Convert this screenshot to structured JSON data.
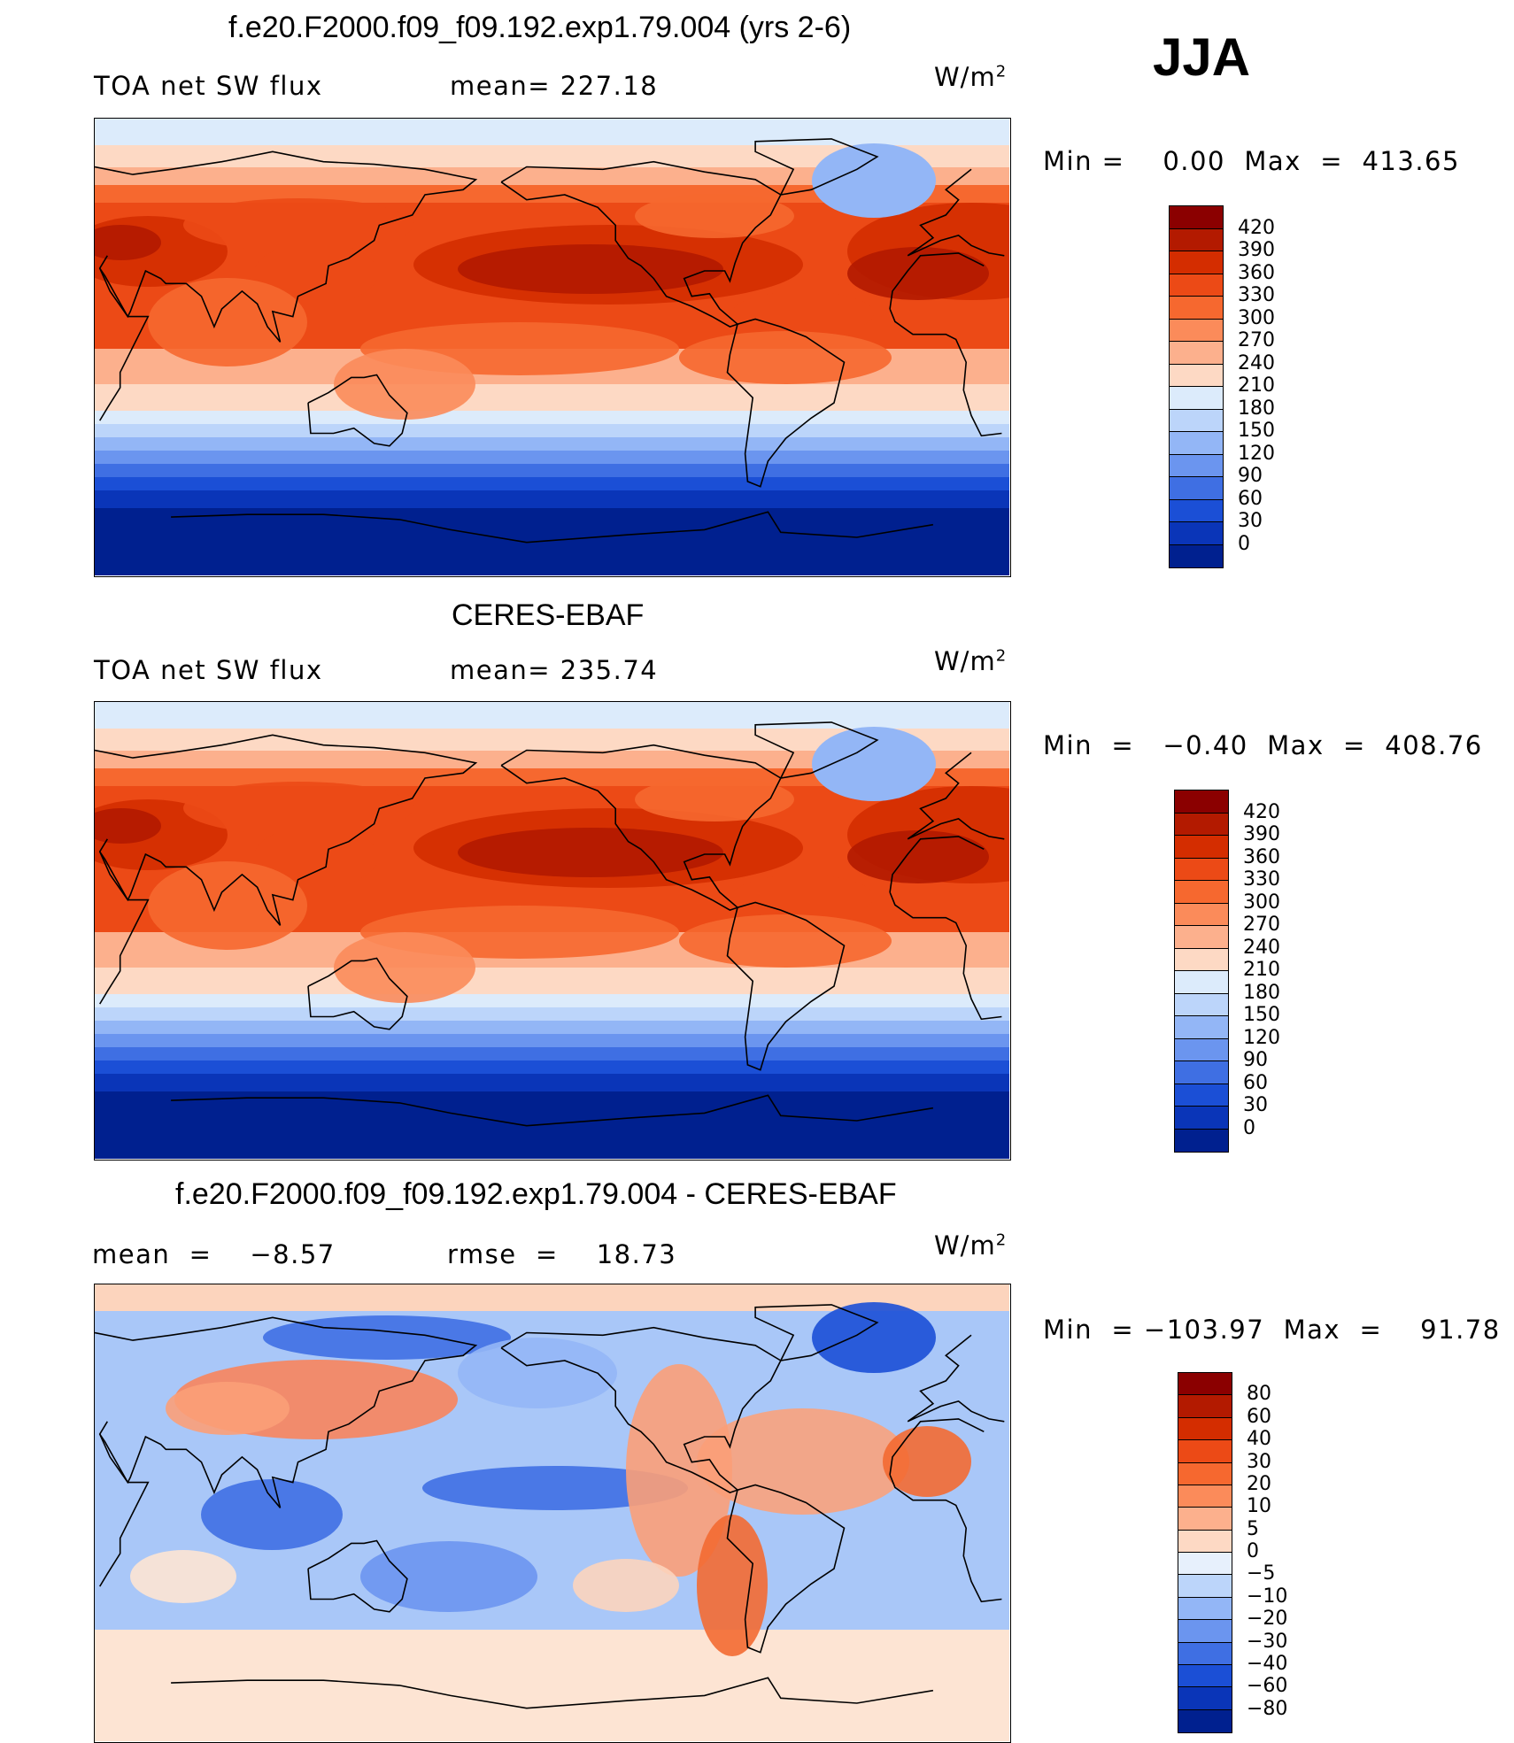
{
  "season": "JJA",
  "panels": [
    {
      "title": "f.e20.F2000.f09_f09.192.exp1.79.004 (yrs 2-6)",
      "left_label": "TOA net SW flux",
      "mid_label": "mean= 227.18",
      "units": "W/m",
      "units_sup": "2",
      "minmax": "Min =    0.00  Max  =  413.65",
      "kind": "abs",
      "colorbar": {
        "labels": [
          "420",
          "390",
          "360",
          "330",
          "300",
          "270",
          "240",
          "210",
          "180",
          "150",
          "120",
          "90",
          "60",
          "30",
          "0"
        ],
        "colors": [
          "#8b0000",
          "#b31a00",
          "#d42d00",
          "#ec4a16",
          "#f6682f",
          "#fb8b5a",
          "#fcb08d",
          "#fdd9c4",
          "#dcebfb",
          "#bcd5fa",
          "#93b6f6",
          "#6b95ef",
          "#3f6fe3",
          "#1b4fd6",
          "#0a35b8",
          "#00208f"
        ]
      }
    },
    {
      "title": "CERES-EBAF",
      "left_label": "TOA net SW flux",
      "mid_label": "mean= 235.74",
      "units": "W/m",
      "units_sup": "2",
      "minmax": "Min  =   −0.40  Max  =  408.76",
      "kind": "abs",
      "colorbar": {
        "labels": [
          "420",
          "390",
          "360",
          "330",
          "300",
          "270",
          "240",
          "210",
          "180",
          "150",
          "120",
          "90",
          "60",
          "30",
          "0"
        ],
        "colors": [
          "#8b0000",
          "#b31a00",
          "#d42d00",
          "#ec4a16",
          "#f6682f",
          "#fb8b5a",
          "#fcb08d",
          "#fdd9c4",
          "#dcebfb",
          "#bcd5fa",
          "#93b6f6",
          "#6b95ef",
          "#3f6fe3",
          "#1b4fd6",
          "#0a35b8",
          "#00208f"
        ]
      }
    },
    {
      "title": "f.e20.F2000.f09_f09.192.exp1.79.004 - CERES-EBAF",
      "left_label": "mean  =    −8.57",
      "mid_label": "rmse  =    18.73",
      "units": "W/m",
      "units_sup": "2",
      "minmax": "Min  = −103.97  Max  =    91.78",
      "kind": "diff",
      "colorbar": {
        "labels": [
          "80",
          "60",
          "40",
          "30",
          "20",
          "10",
          "5",
          "0",
          "−5",
          "−10",
          "−20",
          "−30",
          "−40",
          "−60",
          "−80"
        ],
        "colors": [
          "#8b0000",
          "#b31a00",
          "#d42d00",
          "#ec4a16",
          "#f6682f",
          "#fb8b5a",
          "#fcb08d",
          "#fdd9c4",
          "#e7f0fc",
          "#bcd5fa",
          "#93b6f6",
          "#6b95ef",
          "#3f6fe3",
          "#1b4fd6",
          "#0a35b8",
          "#00208f"
        ]
      }
    }
  ]
}
